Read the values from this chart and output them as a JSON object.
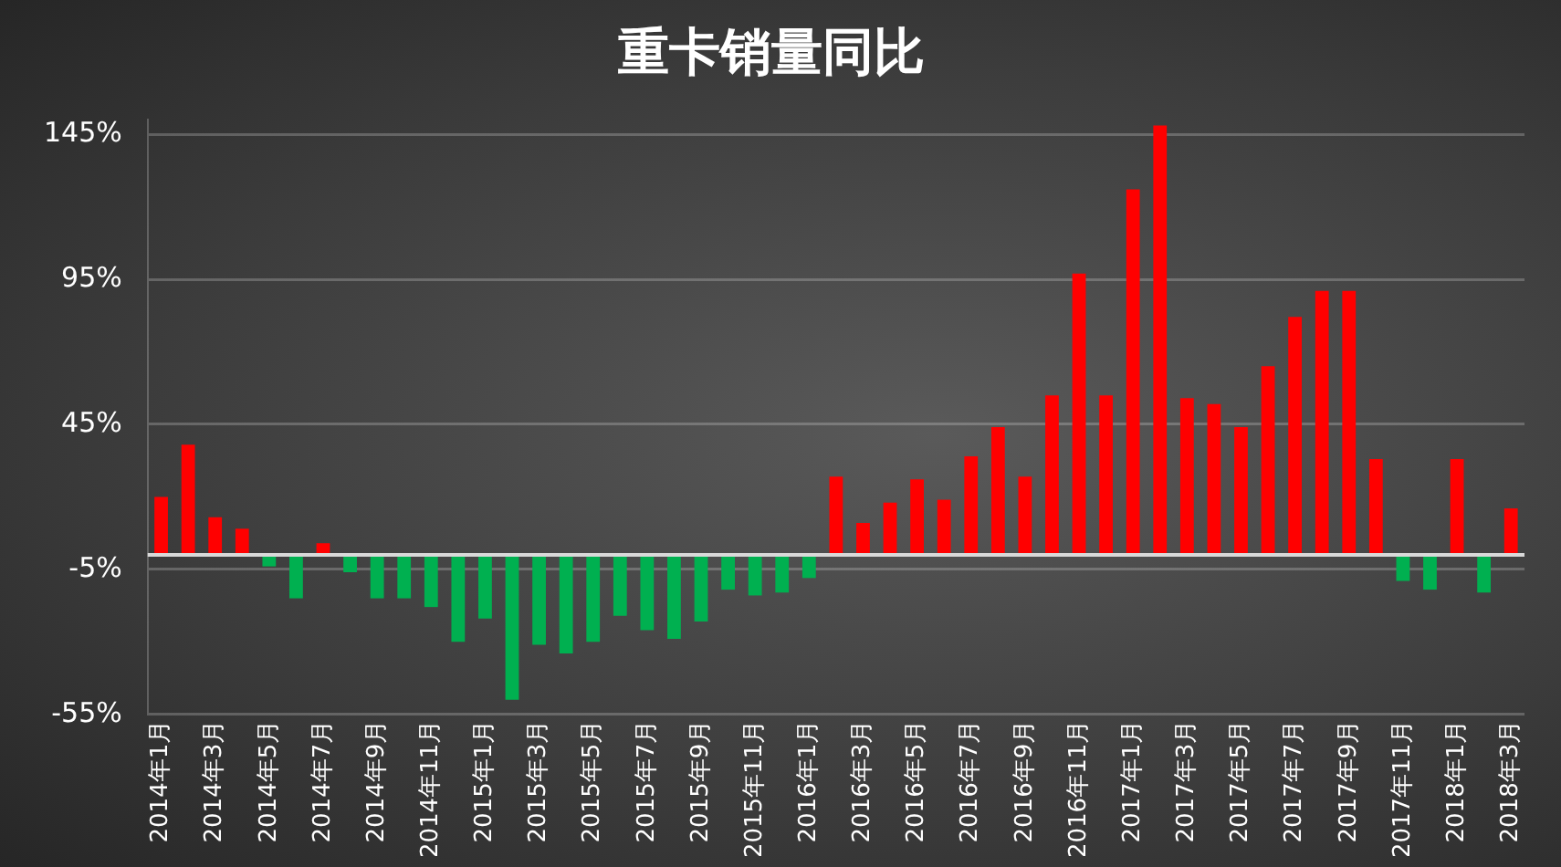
{
  "chart_data": {
    "type": "bar",
    "title": "重卡销量同比",
    "categories": [
      "2014年1月",
      null,
      "2014年3月",
      null,
      "2014年5月",
      null,
      "2014年7月",
      null,
      "2014年9月",
      null,
      "2014年11月",
      null,
      "2015年1月",
      null,
      "2015年3月",
      null,
      "2015年5月",
      null,
      "2015年7月",
      null,
      "2015年9月",
      null,
      "2015年11月",
      null,
      "2016年1月",
      null,
      "2016年3月",
      null,
      "2016年5月",
      null,
      "2016年7月",
      null,
      "2016年9月",
      null,
      "2016年11月",
      null,
      "2017年1月",
      null,
      "2017年3月",
      null,
      "2017年5月",
      null,
      "2017年7月",
      null,
      "2017年9月",
      null,
      "2017年11月",
      null,
      "2018年1月",
      null,
      "2018年3月"
    ],
    "values": [
      20,
      38,
      13,
      9,
      -4,
      -15,
      4,
      -6,
      -15,
      -15,
      -18,
      -30,
      -22,
      -50,
      -31,
      -34,
      -30,
      -21,
      -26,
      -29,
      -23,
      -12,
      -14,
      -13,
      -8,
      27,
      11,
      18,
      26,
      19,
      34,
      44,
      27,
      55,
      97,
      55,
      126,
      148,
      54,
      52,
      44,
      65,
      82,
      91,
      91,
      33,
      -9,
      -12,
      33,
      -13,
      16
    ],
    "colors": [
      "#ff0000",
      "#ff0000",
      "#ff0000",
      "#ff0000",
      "#00b050",
      "#00b050",
      "#ff0000",
      "#00b050",
      "#00b050",
      "#00b050",
      "#00b050",
      "#00b050",
      "#00b050",
      "#00b050",
      "#00b050",
      "#00b050",
      "#00b050",
      "#00b050",
      "#00b050",
      "#00b050",
      "#00b050",
      "#00b050",
      "#00b050",
      "#00b050",
      "#00b050",
      "#ff0000",
      "#ff0000",
      "#ff0000",
      "#ff0000",
      "#ff0000",
      "#ff0000",
      "#ff0000",
      "#ff0000",
      "#ff0000",
      "#ff0000",
      "#ff0000",
      "#ff0000",
      "#ff0000",
      "#ff0000",
      "#ff0000",
      "#ff0000",
      "#ff0000",
      "#ff0000",
      "#ff0000",
      "#ff0000",
      "#ff0000",
      "#00b050",
      "#00b050",
      "#ff0000",
      "#00b050",
      "#ff0000"
    ],
    "ylim": [
      -55,
      150
    ],
    "yticks": [
      {
        "value": -55,
        "label": "-55%"
      },
      {
        "value": -5,
        "label": "-5%"
      },
      {
        "value": 45,
        "label": "45%"
      },
      {
        "value": 95,
        "label": "95%"
      },
      {
        "value": 145,
        "label": "145%"
      }
    ],
    "grid": "y"
  }
}
